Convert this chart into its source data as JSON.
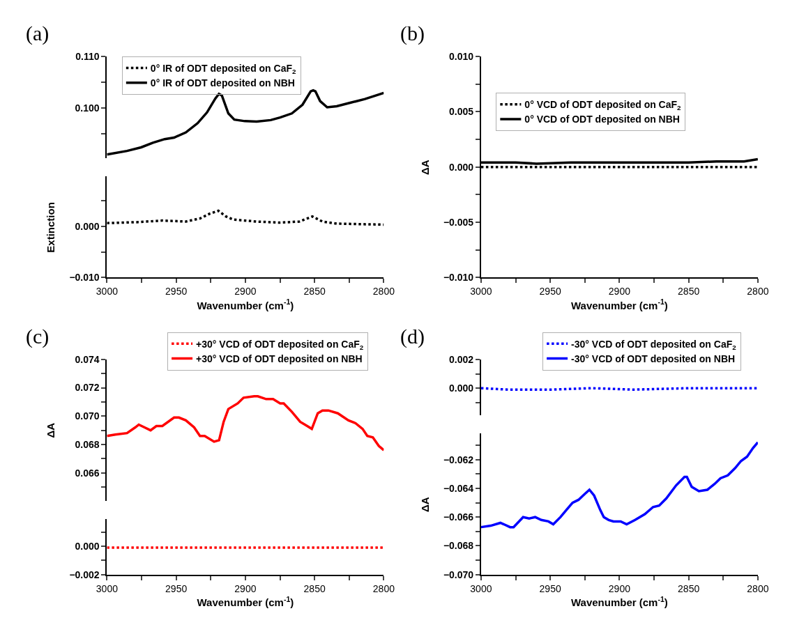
{
  "chart_data": [
    {
      "type": "line",
      "title": "(a)",
      "tick_labels": "y",
      "xlim": [
        3000,
        2800
      ],
      "ylim": [
        0.0902,
        0.11
      ],
      "yticks": [
        {
          "value": 0.095,
          "label": null
        },
        {
          "value": 0.1,
          "label": "0.100"
        },
        {
          "value": 0.105,
          "label": null
        },
        {
          "value": 0.11,
          "label": "0.110"
        }
      ],
      "series": [
        {
          "name": "0° IR of ODT deposited on NBH",
          "color": "#000000",
          "line_style": "solid",
          "x": [
            3000,
            2985.5,
            2975.3,
            2966.8,
            2958.3,
            2951.5,
            2943,
            2934.5,
            2927.7,
            2921.7,
            2919.1,
            2917,
            2912.3,
            2908,
            2900.4,
            2891.9,
            2881.7,
            2874.9,
            2866.4,
            2858.7,
            2852.8,
            2851,
            2849.4,
            2846,
            2840.9,
            2834,
            2823.8,
            2813.6,
            2800
          ],
          "values": [
            0.0909,
            0.0916,
            0.0923,
            0.0932,
            0.0939,
            0.0942,
            0.0952,
            0.097,
            0.0991,
            0.1018,
            0.1027,
            0.1024,
            0.0989,
            0.0977,
            0.0974,
            0.0973,
            0.0976,
            0.0981,
            0.0989,
            0.1006,
            0.1032,
            0.1034,
            0.1032,
            0.1013,
            0.1001,
            0.1003,
            0.101,
            0.1017,
            0.1029
          ]
        }
      ]
    },
    {
      "type": "line",
      "xlabel": "Wavenumber (cm$^{-1}$)",
      "ylabel": "Extinction",
      "legend": "top left",
      "xlim": [
        3000,
        2800
      ],
      "xticks": [
        3000,
        {
          "value": 2975,
          "label": null
        },
        2950,
        {
          "value": 2925,
          "label": null
        },
        2900,
        {
          "value": 2875,
          "label": null
        },
        2850,
        {
          "value": 2825,
          "label": null
        },
        2800
      ],
      "ylim": [
        -0.01,
        0.0097
      ],
      "yticks": [
        {
          "value": -0.01,
          "label": "−0.010"
        },
        {
          "value": -0.005,
          "label": null
        },
        {
          "value": 0.0,
          "label": "0.000"
        },
        {
          "value": 0.005,
          "label": null
        }
      ],
      "series": [
        {
          "name": "0° IR of ODT deposited on CaF$_{2}$",
          "color": "#000000",
          "line_style": "dotted",
          "x": [
            3000,
            2977,
            2960,
            2943,
            2932.8,
            2926,
            2919.5,
            2914,
            2909,
            2892,
            2875,
            2861,
            2851.6,
            2844.3,
            2834,
            2800
          ],
          "values": [
            0.0006,
            0.0008,
            0.0011,
            0.0009,
            0.0015,
            0.0024,
            0.003,
            0.0019,
            0.0013,
            0.0009,
            0.0007,
            0.0009,
            0.0019,
            0.0009,
            0.0005,
            0.0003
          ]
        }
      ]
    },
    {
      "type": "line",
      "title": "(b)",
      "xlabel": "Wavenumber (cm$^{-1}$)",
      "ylabel": "ΔA",
      "legend": "top left",
      "xlim": [
        3000,
        2800
      ],
      "xticks": [
        3000,
        {
          "value": 2975,
          "label": null
        },
        2950,
        {
          "value": 2925,
          "label": null
        },
        2900,
        {
          "value": 2875,
          "label": null
        },
        2850,
        {
          "value": 2825,
          "label": null
        },
        2800
      ],
      "ylim": [
        -0.01,
        0.01
      ],
      "yticks": [
        {
          "value": -0.01,
          "label": "−0.010"
        },
        {
          "value": -0.0075,
          "label": null
        },
        {
          "value": -0.005,
          "label": "−0.005"
        },
        {
          "value": -0.0025,
          "label": null
        },
        {
          "value": 0.0,
          "label": "0.000"
        },
        {
          "value": 0.0025,
          "label": null
        },
        {
          "value": 0.005,
          "label": "0.005"
        },
        {
          "value": 0.0075,
          "label": null
        },
        {
          "value": 0.01,
          "label": "0.010"
        }
      ],
      "series": [
        {
          "name": "0° VCD of ODT deposited on CaF$_{2}$",
          "color": "#000000",
          "line_style": "dotted",
          "x": [
            3000,
            2950,
            2900,
            2850,
            2800
          ],
          "values": [
            0.0,
            0.0,
            0.0,
            0.0,
            0.0
          ]
        },
        {
          "name": "0° VCD of ODT deposited on NBH",
          "color": "#000000",
          "line_style": "solid",
          "x": [
            3000,
            2975,
            2960,
            2935,
            2900,
            2870,
            2850,
            2830,
            2810,
            2800
          ],
          "values": [
            0.0004,
            0.0004,
            0.0003,
            0.0004,
            0.0004,
            0.0004,
            0.0004,
            0.0005,
            0.0005,
            0.0007
          ]
        }
      ]
    },
    {
      "type": "line",
      "title": "(c)",
      "ylabel": "ΔA",
      "tick_labels": "y",
      "xlim": [
        3000,
        2800
      ],
      "ylim": [
        0.064,
        0.074
      ],
      "yticks": [
        {
          "value": 0.065,
          "label": null
        },
        {
          "value": 0.066,
          "label": "0.066"
        },
        {
          "value": 0.067,
          "label": null
        },
        {
          "value": 0.068,
          "label": "0.068"
        },
        {
          "value": 0.069,
          "label": null
        },
        {
          "value": 0.07,
          "label": "0.070"
        },
        {
          "value": 0.071,
          "label": null
        },
        {
          "value": 0.072,
          "label": "0.072"
        },
        {
          "value": 0.073,
          "label": null
        },
        {
          "value": 0.074,
          "label": "0.074"
        }
      ],
      "series": [
        {
          "name": "+30° VCD of ODT deposited on NBH",
          "color": "#ff0000",
          "line_style": "solid",
          "x": [
            3000,
            2994,
            2985.5,
            2979.6,
            2977,
            2972.8,
            2968.5,
            2964.3,
            2960,
            2951.5,
            2948,
            2943,
            2937,
            2932.8,
            2929.4,
            2922.6,
            2919,
            2915.7,
            2912.3,
            2905.5,
            2901.3,
            2893.6,
            2891,
            2885,
            2880,
            2874.9,
            2872.3,
            2866.4,
            2860.4,
            2855.3,
            2852,
            2847.7,
            2844.3,
            2840,
            2833.2,
            2825.5,
            2820.4,
            2815.3,
            2811.9,
            2807.9,
            2803.6,
            2800
          ],
          "values": [
            0.0686,
            0.0687,
            0.0688,
            0.0692,
            0.0694,
            0.0692,
            0.069,
            0.0693,
            0.0693,
            0.0699,
            0.0699,
            0.0697,
            0.0692,
            0.0686,
            0.0686,
            0.0682,
            0.0683,
            0.0696,
            0.0705,
            0.0709,
            0.0713,
            0.0714,
            0.0714,
            0.0712,
            0.0712,
            0.0709,
            0.0709,
            0.0703,
            0.0696,
            0.0693,
            0.0691,
            0.0702,
            0.0704,
            0.0704,
            0.0702,
            0.0697,
            0.0695,
            0.0691,
            0.0686,
            0.0685,
            0.0679,
            0.0676
          ]
        }
      ]
    },
    {
      "type": "line",
      "xlabel": "Wavenumber (cm$^{-1}$)",
      "legend": "top",
      "xlim": [
        3000,
        2800
      ],
      "xticks": [
        3000,
        {
          "value": 2975,
          "label": null
        },
        2950,
        {
          "value": 2925,
          "label": null
        },
        2900,
        {
          "value": 2875,
          "label": null
        },
        2850,
        {
          "value": 2825,
          "label": null
        },
        2800
      ],
      "ylim": [
        -0.002,
        0.0019
      ],
      "yticks": [
        {
          "value": -0.002,
          "label": "−0.002"
        },
        {
          "value": -0.001,
          "label": null
        },
        {
          "value": 0.0,
          "label": "0.000"
        },
        {
          "value": 0.001,
          "label": null
        }
      ],
      "series": [
        {
          "name": "+30° VCD of ODT deposited on CaF$_{2}$",
          "color": "#ff0000",
          "line_style": "dotted",
          "x": [
            3000,
            2950,
            2900,
            2850,
            2800
          ],
          "values": [
            -0.0001,
            -0.0001,
            -0.0001,
            -0.0001,
            -0.0001
          ]
        }
      ]
    },
    {
      "type": "line",
      "title": "(d)",
      "tick_labels": "y",
      "legend": "top",
      "xlim": [
        3000,
        2800
      ],
      "ylim": [
        -0.0019,
        0.002
      ],
      "yticks": [
        {
          "value": -0.001,
          "label": null
        },
        {
          "value": 0.0,
          "label": "0.000"
        },
        {
          "value": 0.001,
          "label": null
        },
        {
          "value": 0.002,
          "label": "0.002"
        }
      ],
      "series": [
        {
          "name": "-30° VCD of ODT deposited on CaF$_{2}$",
          "color": "#0000ff",
          "line_style": "dotted",
          "x": [
            3000,
            2980,
            2950,
            2920,
            2890,
            2850,
            2800
          ],
          "values": [
            0.0,
            -0.0001,
            -0.0001,
            0.0,
            -0.0001,
            0.0,
            0.0
          ]
        }
      ]
    },
    {
      "type": "line",
      "xlabel": "Wavenumber (cm$^{-1}$)",
      "ylabel": "ΔA",
      "xlim": [
        3000,
        2800
      ],
      "xticks": [
        3000,
        {
          "value": 2975,
          "label": null
        },
        2950,
        {
          "value": 2925,
          "label": null
        },
        2900,
        {
          "value": 2875,
          "label": null
        },
        2850,
        {
          "value": 2825,
          "label": null
        },
        2800
      ],
      "ylim": [
        -0.07,
        -0.0602
      ],
      "yticks": [
        {
          "value": -0.07,
          "label": "−0.070"
        },
        {
          "value": -0.069,
          "label": null
        },
        {
          "value": -0.068,
          "label": "−0.068"
        },
        {
          "value": -0.067,
          "label": null
        },
        {
          "value": -0.066,
          "label": "−0.066"
        },
        {
          "value": -0.065,
          "label": null
        },
        {
          "value": -0.064,
          "label": "−0.064"
        },
        {
          "value": -0.063,
          "label": null
        },
        {
          "value": -0.062,
          "label": "−0.062"
        },
        {
          "value": -0.061,
          "label": null
        }
      ],
      "series": [
        {
          "name": "-30° VCD of ODT deposited on NBH",
          "color": "#0000ff",
          "line_style": "solid",
          "x": [
            3000,
            2993,
            2986,
            2983.5,
            2979,
            2976.5,
            2969.6,
            2965.2,
            2960.9,
            2956.5,
            2951.3,
            2947.8,
            2942.6,
            2938.3,
            2933.9,
            2929.6,
            2925.2,
            2921.7,
            2918.3,
            2913.9,
            2911.3,
            2907.8,
            2904.3,
            2899.1,
            2894.8,
            2888.7,
            2881.7,
            2875.7,
            2871.3,
            2866.1,
            2859.1,
            2853,
            2851.3,
            2847.8,
            2842.6,
            2836.5,
            2831.3,
            2827,
            2821.7,
            2816.5,
            2812.2,
            2807.8,
            2803.5,
            2800
          ],
          "values": [
            -0.0667,
            -0.0666,
            -0.0664,
            -0.0665,
            -0.0667,
            -0.0667,
            -0.066,
            -0.0661,
            -0.066,
            -0.0662,
            -0.0663,
            -0.0665,
            -0.066,
            -0.0655,
            -0.065,
            -0.0648,
            -0.0644,
            -0.0641,
            -0.0645,
            -0.0655,
            -0.066,
            -0.0662,
            -0.0663,
            -0.0663,
            -0.0665,
            -0.0662,
            -0.0658,
            -0.0653,
            -0.0652,
            -0.0647,
            -0.0638,
            -0.0632,
            -0.0632,
            -0.0639,
            -0.0642,
            -0.0641,
            -0.0637,
            -0.0633,
            -0.0631,
            -0.0626,
            -0.0621,
            -0.0618,
            -0.0612,
            -0.0608
          ]
        }
      ]
    }
  ]
}
